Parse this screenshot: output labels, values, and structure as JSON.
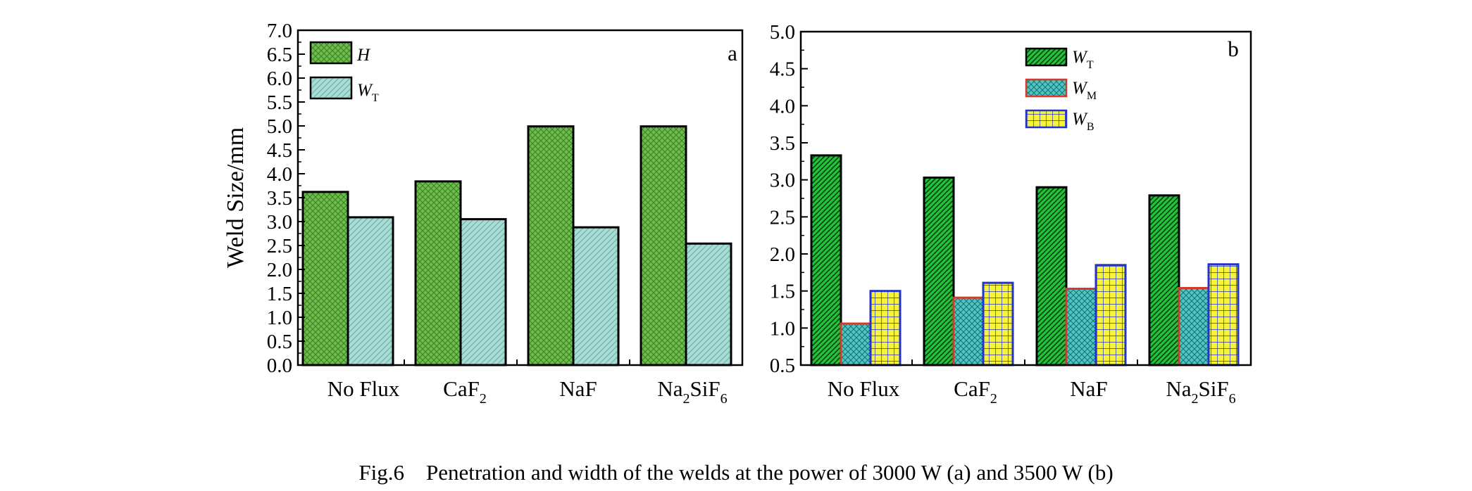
{
  "caption": "Fig.6 Penetration and width of the welds at the power of 3000 W (a) and 3500 W (b)",
  "chart_data": [
    {
      "type": "bar",
      "panel_label": "a",
      "ylabel": "Weld Size/mm",
      "ylim": [
        0.0,
        7.0
      ],
      "yticks": [
        "0.0",
        "0.5",
        "1.0",
        "1.5",
        "2.0",
        "2.5",
        "3.0",
        "3.5",
        "4.0",
        "4.5",
        "5.0",
        "5.5",
        "6.0",
        "6.5",
        "7.0"
      ],
      "categories": [
        {
          "base": "No Flux",
          "parts": [
            {
              "t": "No Flux"
            }
          ]
        },
        {
          "base": "CaF2",
          "parts": [
            {
              "t": "CaF"
            },
            {
              "t": "2",
              "sub": true
            }
          ]
        },
        {
          "base": "NaF",
          "parts": [
            {
              "t": "NaF"
            }
          ]
        },
        {
          "base": "Na2SiF6",
          "parts": [
            {
              "t": "Na"
            },
            {
              "t": "2",
              "sub": true
            },
            {
              "t": "SiF"
            },
            {
              "t": "6",
              "sub": true
            }
          ]
        }
      ],
      "legend_position": "top-left",
      "series": [
        {
          "name": "H",
          "sub": "",
          "values": [
            3.62,
            3.84,
            4.99,
            4.99
          ],
          "color": "#6cc04a",
          "pattern": "crosshatch-dark"
        },
        {
          "name": "W",
          "sub": "T",
          "values": [
            3.09,
            3.05,
            2.88,
            2.54
          ],
          "color": "#a8dcd5",
          "pattern": "diag-light"
        }
      ]
    },
    {
      "type": "bar",
      "panel_label": "b",
      "ylabel": "",
      "ylim": [
        0.5,
        5.0
      ],
      "yticks": [
        "0.5",
        "1.0",
        "1.5",
        "2.0",
        "2.5",
        "3.0",
        "3.5",
        "4.0",
        "4.5",
        "5.0"
      ],
      "categories": [
        {
          "base": "No Flux",
          "parts": [
            {
              "t": "No Flux"
            }
          ]
        },
        {
          "base": "CaF2",
          "parts": [
            {
              "t": "CaF"
            },
            {
              "t": "2",
              "sub": true
            }
          ]
        },
        {
          "base": "NaF",
          "parts": [
            {
              "t": "NaF"
            }
          ]
        },
        {
          "base": "Na2SiF6",
          "parts": [
            {
              "t": "Na"
            },
            {
              "t": "2",
              "sub": true
            },
            {
              "t": "SiF"
            },
            {
              "t": "6",
              "sub": true
            }
          ]
        }
      ],
      "legend_position": "top-center",
      "series": [
        {
          "name": "W",
          "sub": "T",
          "values": [
            3.33,
            3.03,
            2.9,
            2.79
          ],
          "color": "#22c33a",
          "pattern": "diag-dense",
          "edge": "#000000"
        },
        {
          "name": "W",
          "sub": "M",
          "values": [
            1.06,
            1.41,
            1.53,
            1.54
          ],
          "color": "#4dc7c4",
          "pattern": "crosshatch",
          "edge": "#d33a2c"
        },
        {
          "name": "W",
          "sub": "B",
          "values": [
            1.5,
            1.61,
            1.85,
            1.86
          ],
          "color": "#f7f23a",
          "pattern": "grid",
          "edge": "#2433c8"
        }
      ]
    }
  ]
}
